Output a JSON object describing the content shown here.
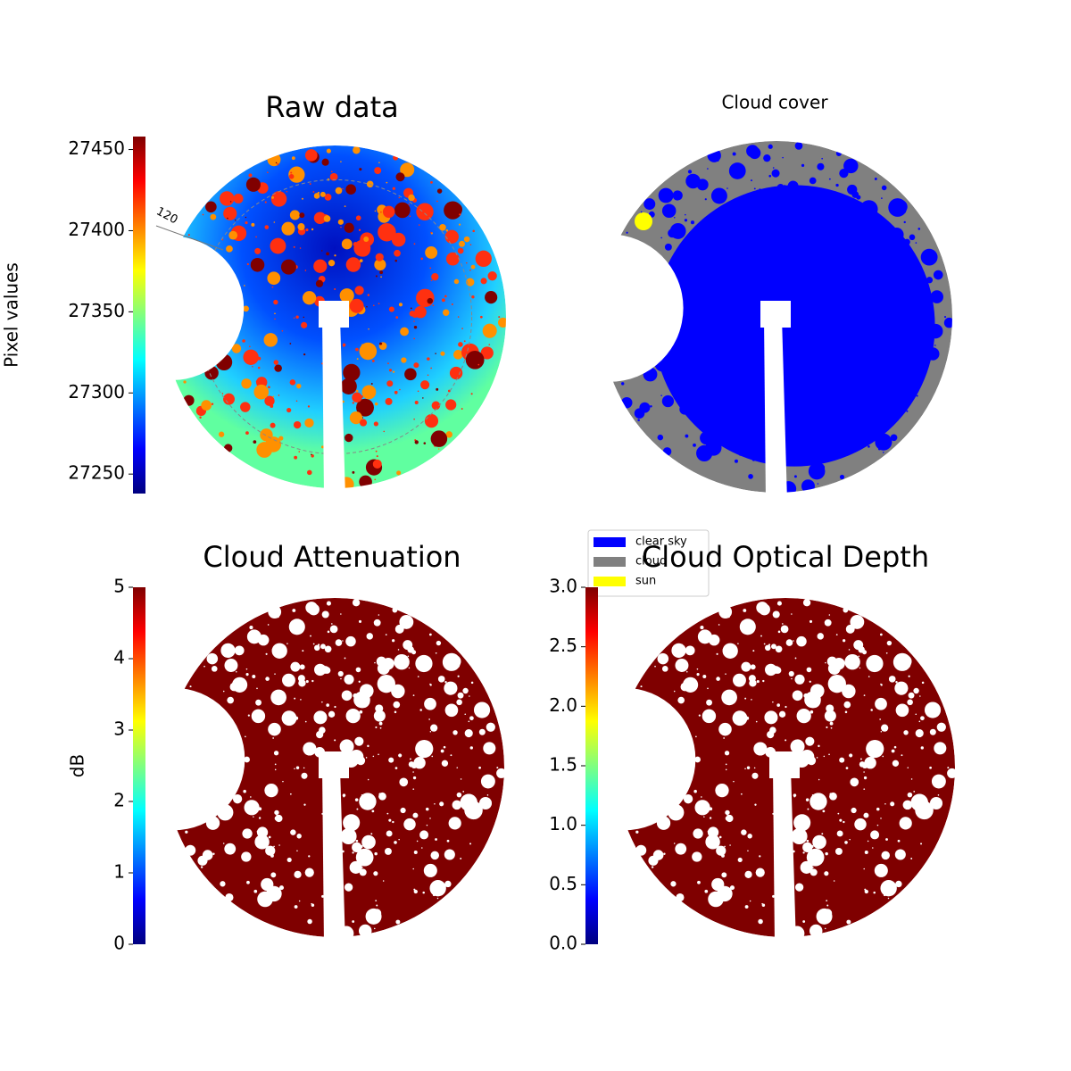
{
  "chart_data": [
    {
      "type": "image",
      "title": "Raw data",
      "colorbar_label": "Pixel values",
      "colormap": "jet",
      "ylim": [
        27238,
        27458
      ],
      "yticks": [
        27250,
        27300,
        27350,
        27400,
        27450
      ],
      "annotations": [
        "120"
      ]
    },
    {
      "type": "image",
      "title": "Cloud cover",
      "legend": "lower left",
      "series": [
        {
          "name": "clear sky",
          "color": "#0000ff"
        },
        {
          "name": "cloud",
          "color": "#808080"
        },
        {
          "name": "sun",
          "color": "#ffff00"
        }
      ]
    },
    {
      "type": "image",
      "title": "Cloud Attenuation",
      "colorbar_label": "dB",
      "colormap": "jet",
      "ylim": [
        0,
        5
      ],
      "yticks": [
        0,
        1,
        2,
        3,
        4,
        5
      ]
    },
    {
      "type": "image",
      "title": "Cloud Optical Depth",
      "colormap": "jet",
      "ylim": [
        0,
        3
      ],
      "yticks": [
        {
          "value": 0,
          "label": "0.0"
        },
        {
          "value": 0.5,
          "label": "0.5"
        },
        {
          "value": 1,
          "label": "1.0"
        },
        {
          "value": 1.5,
          "label": "1.5"
        },
        {
          "value": 2,
          "label": "2.0"
        },
        {
          "value": 2.5,
          "label": "2.5"
        },
        {
          "value": 3,
          "label": "3.0"
        }
      ]
    }
  ]
}
